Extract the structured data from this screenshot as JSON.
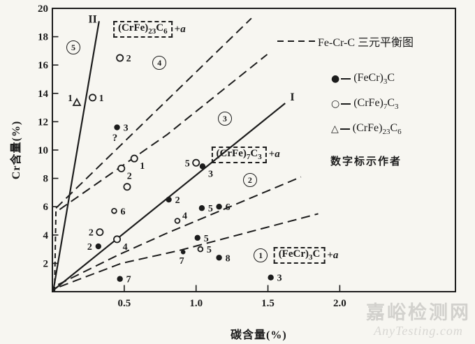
{
  "figure": {
    "ink_color": "#1c1c1c",
    "paper_color": "#f7f6f1",
    "watermark_cn_color": "#d2d1cd",
    "watermark_en_color": "#d8d7d3"
  },
  "watermark": {
    "line1": "嘉峪检测网",
    "line2": "AnyTesting.com"
  },
  "chart_data": {
    "type": "scatter",
    "title": "",
    "xlabel": "碳含量(%)",
    "ylabel": "Cr含量(%)",
    "xlim": [
      0,
      2.8
    ],
    "ylim": [
      0,
      20
    ],
    "grid": false,
    "xticks": [
      {
        "label": "0.5",
        "value": 0.5
      },
      {
        "label": "1.0",
        "value": 1.0
      },
      {
        "label": "1.5",
        "value": 1.5
      },
      {
        "label": "2.0",
        "value": 2.0
      }
    ],
    "yticks": [
      2,
      4,
      6,
      8,
      10,
      12,
      14,
      16,
      18,
      20
    ],
    "legend": {
      "position": "top-right-inside",
      "line_sample_label": "Fe-Cr-C 三元平衡图",
      "items": [
        {
          "symbol": "●",
          "marker": "filled-circle",
          "formula": "(FeCr)₃C"
        },
        {
          "symbol": "○",
          "marker": "open-circle",
          "formula": "(CrFe)₇C₃"
        },
        {
          "symbol": "△",
          "marker": "open-triangle",
          "formula": "(CrFe)₂₃C₆"
        }
      ],
      "note": "数字标示作者"
    },
    "series": [
      {
        "name": "(FeCr)₃C",
        "marker": "filled-circle",
        "points": [
          {
            "x": 0.45,
            "y": 11.6,
            "label": "3",
            "lpos": "r"
          },
          {
            "x": 1.045,
            "y": 8.85,
            "label": "3",
            "lpos": "br"
          },
          {
            "x": 0.81,
            "y": 6.5,
            "label": "2",
            "lpos": "r"
          },
          {
            "x": 1.04,
            "y": 5.9,
            "label": "5",
            "lpos": "r"
          },
          {
            "x": 1.16,
            "y": 6.0,
            "label": "6",
            "lpos": "r"
          },
          {
            "x": 1.01,
            "y": 3.8,
            "label": "5",
            "lpos": "r"
          },
          {
            "x": 0.91,
            "y": 2.8,
            "label": "7",
            "lpos": "bl",
            "small": true
          },
          {
            "x": 1.16,
            "y": 2.4,
            "label": "8",
            "lpos": "r"
          },
          {
            "x": 0.47,
            "y": 0.9,
            "label": "7",
            "lpos": "r"
          },
          {
            "x": 1.52,
            "y": 1.0,
            "label": "3",
            "lpos": "r"
          },
          {
            "x": 0.32,
            "y": 3.2,
            "label": "2",
            "lpos": "l"
          }
        ]
      },
      {
        "name": "(CrFe)₇C₃",
        "marker": "open-circle",
        "points": [
          {
            "x": 0.47,
            "y": 16.5,
            "label": "2",
            "lpos": "r"
          },
          {
            "x": 0.28,
            "y": 13.7,
            "label": "1",
            "lpos": "r"
          },
          {
            "x": 0.57,
            "y": 9.4,
            "label": "1",
            "lpos": "br"
          },
          {
            "x": 0.48,
            "y": 8.7,
            "label": "2",
            "lpos": "br"
          },
          {
            "x": 1.0,
            "y": 9.1,
            "label": "5",
            "lpos": "l"
          },
          {
            "x": 0.52,
            "y": 7.4,
            "label": "",
            "lpos": "r"
          },
          {
            "x": 0.43,
            "y": 5.7,
            "label": "6",
            "lpos": "r",
            "small": true
          },
          {
            "x": 0.33,
            "y": 4.2,
            "label": "2",
            "lpos": "l"
          },
          {
            "x": 0.45,
            "y": 3.7,
            "label": "4",
            "lpos": "br"
          },
          {
            "x": 0.87,
            "y": 5.0,
            "label": "4",
            "lpos": "ar",
            "small": true
          },
          {
            "x": 1.03,
            "y": 3.0,
            "label": "5",
            "lpos": "r",
            "small": true
          }
        ]
      },
      {
        "name": "(CrFe)₂₃C₆",
        "marker": "open-triangle",
        "points": [
          {
            "x": 0.17,
            "y": 13.35,
            "label": "1",
            "lpos": "al"
          }
        ]
      }
    ],
    "solid_lines": [
      {
        "label": "I",
        "points": [
          [
            0.0,
            0.05
          ],
          [
            1.62,
            13.3
          ]
        ],
        "label_at": [
          1.655,
          13.5
        ]
      },
      {
        "label": "II",
        "points": [
          [
            0.005,
            0.0
          ],
          [
            0.325,
            19.1
          ]
        ],
        "label_at": [
          0.25,
          19.0
        ]
      }
    ],
    "dashed_lines": [
      {
        "name": "steep-left",
        "points": [
          [
            0.015,
            0.0
          ],
          [
            0.025,
            5.9
          ]
        ],
        "dash": "7 5"
      },
      {
        "name": "upper-a",
        "points": [
          [
            0.025,
            5.9
          ],
          [
            1.385,
            19.3
          ]
        ],
        "dash": "13 7"
      },
      {
        "name": "upper-b",
        "points": [
          [
            0.05,
            5.8
          ],
          [
            0.8,
            11.1
          ],
          [
            1.495,
            16.75
          ]
        ],
        "dash": "13 7"
      },
      {
        "name": "lower-c",
        "points": [
          [
            0.04,
            0.5
          ],
          [
            0.46,
            2.6
          ],
          [
            0.79,
            4.1
          ],
          [
            1.73,
            8.1
          ]
        ],
        "dash": "13 7"
      },
      {
        "name": "lower-d",
        "points": [
          [
            0.05,
            0.35
          ],
          [
            0.48,
            2.0
          ],
          [
            0.88,
            2.9
          ],
          [
            1.85,
            5.5
          ]
        ],
        "dash": "13 7"
      }
    ],
    "region_labels": [
      {
        "n": "5",
        "x": 0.146,
        "y": 17.25
      },
      {
        "n": "4",
        "x": 0.745,
        "y": 16.15
      },
      {
        "n": "3",
        "x": 1.2,
        "y": 12.2
      },
      {
        "n": "2",
        "x": 1.375,
        "y": 7.9
      },
      {
        "n": "1",
        "x": 1.45,
        "y": 2.55
      }
    ],
    "phase_boxes": [
      {
        "formula": "(CrFe)₂₃C₆",
        "suffix": "+a",
        "x": 0.675,
        "y": 18.5
      },
      {
        "formula": "(CrFe)₇C₃",
        "suffix": "+a",
        "x": 1.345,
        "y": 9.66
      },
      {
        "formula": "(FeCr)₃C",
        "suffix": "+a",
        "x": 1.765,
        "y": 2.55
      }
    ],
    "annotations": [
      {
        "text": "?",
        "x": 0.435,
        "y": 10.65
      }
    ]
  }
}
